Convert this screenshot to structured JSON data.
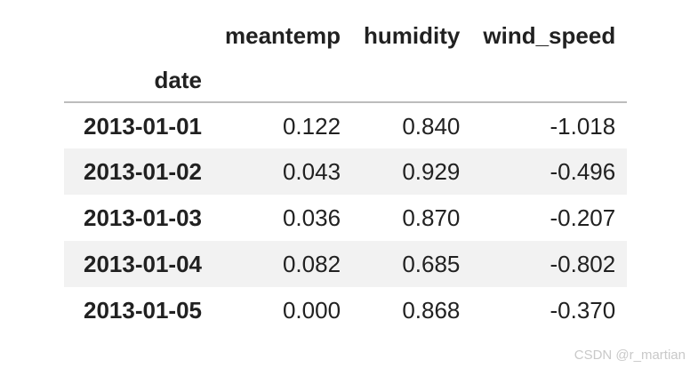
{
  "chart_data": {
    "type": "table",
    "index_name": "date",
    "columns": [
      "meantemp",
      "humidity",
      "wind_speed"
    ],
    "index": [
      "2013-01-01",
      "2013-01-02",
      "2013-01-03",
      "2013-01-04",
      "2013-01-05"
    ],
    "rows": [
      [
        0.122,
        0.84,
        -1.018
      ],
      [
        0.043,
        0.929,
        -0.496
      ],
      [
        0.036,
        0.87,
        -0.207
      ],
      [
        0.082,
        0.685,
        -0.802
      ],
      [
        0.0,
        0.868,
        -0.37
      ]
    ]
  },
  "table": {
    "index_name": "date",
    "columns": [
      "meantemp",
      "humidity",
      "wind_speed"
    ],
    "rows": [
      {
        "index": "2013-01-01",
        "values": [
          "0.122",
          "0.840",
          "-1.018"
        ]
      },
      {
        "index": "2013-01-02",
        "values": [
          "0.043",
          "0.929",
          "-0.496"
        ]
      },
      {
        "index": "2013-01-03",
        "values": [
          "0.036",
          "0.870",
          "-0.207"
        ]
      },
      {
        "index": "2013-01-04",
        "values": [
          "0.082",
          "0.685",
          "-0.802"
        ]
      },
      {
        "index": "2013-01-05",
        "values": [
          "0.000",
          "0.868",
          "-0.370"
        ]
      }
    ]
  },
  "watermark": {
    "text": "CSDN @r_martian"
  },
  "colors": {
    "background": "#ffffff",
    "text": "#212121",
    "stripe": "#f2f2f2",
    "header_rule": "#bcbcbc",
    "watermark": "#c9c9c9"
  }
}
